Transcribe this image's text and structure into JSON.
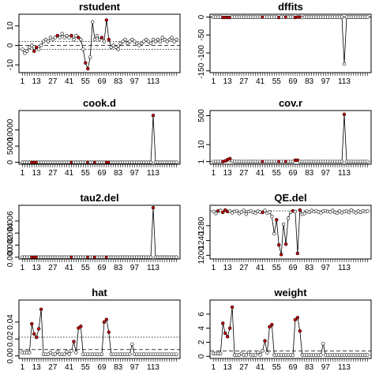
{
  "chart_data": [
    {
      "type": "line",
      "title": "rstudent",
      "xlabel": "",
      "ylabel": "",
      "xticks": [
        "1",
        "13",
        "27",
        "41",
        "55",
        "69",
        "83",
        "97",
        "113"
      ],
      "yticks": [
        -10,
        0,
        10
      ],
      "ylim": [
        -14,
        16
      ],
      "hlines": [
        {
          "y": 2,
          "style": "dotted"
        },
        {
          "y": 0,
          "style": "dashed"
        },
        {
          "y": -2,
          "style": "dotted"
        }
      ],
      "x": [
        1,
        3,
        5,
        7,
        9,
        11,
        13,
        15,
        17,
        19,
        21,
        23,
        25,
        27,
        29,
        31,
        33,
        35,
        37,
        39,
        41,
        43,
        45,
        47,
        49,
        51,
        53,
        55,
        57,
        59,
        61,
        63,
        65,
        67,
        69,
        71,
        73,
        75,
        77,
        79,
        81,
        83,
        85,
        87,
        89,
        91,
        93,
        95,
        97,
        99,
        101,
        103,
        105,
        107,
        109,
        111,
        113,
        115,
        117,
        119,
        121,
        123,
        125,
        127,
        129,
        131,
        133
      ],
      "values": [
        -2,
        -4,
        -3,
        -1,
        0,
        -3,
        -1,
        -2,
        0,
        2,
        3,
        2,
        4,
        3,
        4,
        5,
        4,
        6,
        4,
        5,
        4,
        5,
        3,
        5,
        4,
        3,
        -2,
        -9,
        -12,
        -6,
        12,
        3,
        5,
        3,
        4,
        2,
        13,
        3,
        -1,
        0,
        -1,
        -2,
        1,
        2,
        3,
        1,
        2,
        3,
        2,
        1,
        0,
        1,
        2,
        3,
        2,
        1,
        3,
        2,
        3,
        2,
        4,
        3,
        2,
        3,
        4,
        2,
        3
      ],
      "highlighted_x": [
        11,
        13,
        31,
        43,
        49,
        55,
        57,
        69,
        73,
        75
      ]
    },
    {
      "type": "line",
      "title": "dffits",
      "xlabel": "",
      "ylabel": "",
      "xticks": [
        "1",
        "13",
        "27",
        "41",
        "55",
        "69",
        "83",
        "97",
        "113"
      ],
      "yticks": [
        -150,
        -100,
        -50,
        0
      ],
      "ylim": [
        -155,
        8
      ],
      "hlines": [
        {
          "y": 0.6,
          "style": "dotted"
        },
        {
          "y": 0,
          "style": "dashed"
        },
        {
          "y": -0.6,
          "style": "dotted"
        }
      ],
      "x": [
        1,
        3,
        5,
        7,
        9,
        11,
        13,
        15,
        17,
        19,
        21,
        23,
        25,
        27,
        29,
        31,
        33,
        35,
        37,
        39,
        41,
        43,
        45,
        47,
        49,
        51,
        53,
        55,
        57,
        59,
        61,
        63,
        65,
        67,
        69,
        71,
        73,
        75,
        77,
        79,
        81,
        83,
        85,
        87,
        89,
        91,
        93,
        95,
        97,
        99,
        101,
        103,
        105,
        107,
        109,
        111,
        113,
        115,
        117,
        119,
        121,
        123,
        125,
        127,
        129,
        131,
        133
      ],
      "values": [
        0,
        0,
        0,
        0,
        -1,
        -1,
        -1,
        -1,
        0,
        0,
        0,
        0,
        0,
        0,
        0,
        0,
        0,
        0,
        0,
        0,
        0,
        0,
        0,
        0,
        0,
        0,
        0,
        0,
        -1,
        0,
        0,
        0,
        0,
        0,
        0,
        -1,
        0,
        0,
        -1,
        0,
        0,
        0,
        0,
        0,
        0,
        0,
        0,
        0,
        0,
        0,
        0,
        0,
        0,
        0,
        0,
        0,
        -131,
        0,
        0,
        0,
        0,
        0,
        0,
        0,
        0,
        0,
        0
      ],
      "highlighted_x": [
        9,
        11,
        13,
        15,
        43,
        57,
        63,
        71,
        73,
        75
      ]
    },
    {
      "type": "line",
      "title": "cook.d",
      "xlabel": "",
      "ylabel": "",
      "xticks": [
        "1",
        "13",
        "27",
        "41",
        "55",
        "69",
        "83",
        "97",
        "113"
      ],
      "yticks": [
        0,
        5000,
        10000
      ],
      "ylim": [
        -600,
        16000
      ],
      "hlines": [
        {
          "y": 0,
          "style": "dotted"
        }
      ],
      "x": [
        1,
        3,
        5,
        7,
        9,
        11,
        13,
        15,
        17,
        19,
        21,
        23,
        25,
        27,
        29,
        31,
        33,
        35,
        37,
        39,
        41,
        43,
        45,
        47,
        49,
        51,
        53,
        55,
        57,
        59,
        61,
        63,
        65,
        67,
        69,
        71,
        73,
        75,
        77,
        79,
        81,
        83,
        85,
        87,
        89,
        91,
        93,
        95,
        97,
        99,
        101,
        103,
        105,
        107,
        109,
        111,
        113,
        115,
        117,
        119,
        121,
        123,
        125,
        127,
        129,
        131,
        133
      ],
      "values": [
        0,
        0,
        0,
        0,
        0,
        0,
        0,
        0,
        0,
        0,
        0,
        0,
        0,
        0,
        0,
        0,
        0,
        0,
        0,
        0,
        0,
        0,
        0,
        0,
        0,
        0,
        0,
        0,
        0,
        0,
        0,
        0,
        0,
        0,
        0,
        0,
        0,
        0,
        0,
        0,
        0,
        0,
        0,
        0,
        0,
        0,
        0,
        0,
        0,
        0,
        0,
        0,
        0,
        0,
        0,
        0,
        14500,
        0,
        0,
        0,
        0,
        0,
        0,
        0,
        0,
        0,
        0
      ],
      "highlighted_x": [
        9,
        11,
        13,
        43,
        57,
        63,
        73,
        75,
        113
      ]
    },
    {
      "type": "line",
      "title": "cov.r",
      "xlabel": "",
      "ylabel": "",
      "yscale": "log",
      "xticks": [
        "1",
        "13",
        "27",
        "41",
        "55",
        "69",
        "83",
        "97",
        "113"
      ],
      "yticks": [
        1,
        10,
        500
      ],
      "ylim": [
        0.7,
        1000
      ],
      "hlines": [
        {
          "y": 1,
          "style": "dotted"
        }
      ],
      "x": [
        1,
        3,
        5,
        7,
        9,
        11,
        13,
        15,
        17,
        19,
        21,
        23,
        25,
        27,
        29,
        31,
        33,
        35,
        37,
        39,
        41,
        43,
        45,
        47,
        49,
        51,
        53,
        55,
        57,
        59,
        61,
        63,
        65,
        67,
        69,
        71,
        73,
        75,
        77,
        79,
        81,
        83,
        85,
        87,
        89,
        91,
        93,
        95,
        97,
        99,
        101,
        103,
        105,
        107,
        109,
        111,
        113,
        115,
        117,
        119,
        121,
        123,
        125,
        127,
        129,
        131,
        133
      ],
      "values": [
        1,
        1,
        1,
        1,
        1,
        1.1,
        1.3,
        1.5,
        1.1,
        1,
        1,
        1,
        1,
        1,
        1,
        1,
        1,
        1,
        1,
        1,
        1,
        1,
        1,
        1,
        1,
        1,
        1,
        1,
        1,
        1,
        1,
        1,
        1,
        1,
        1,
        1.2,
        1.2,
        1,
        1,
        1,
        1,
        1,
        1,
        1,
        1,
        1,
        1,
        1,
        1,
        1,
        1,
        1,
        1,
        1,
        1,
        1,
        600,
        1,
        1,
        1,
        1,
        1,
        1,
        1,
        1,
        1,
        1
      ],
      "highlighted_x": [
        9,
        11,
        13,
        15,
        43,
        57,
        63,
        71,
        73,
        113
      ]
    },
    {
      "type": "line",
      "title": "tau2.del",
      "xlabel": "",
      "ylabel": "",
      "xticks": [
        "1",
        "13",
        "27",
        "41",
        "55",
        "69",
        "83",
        "97",
        "113"
      ],
      "yticks": [
        "0.000",
        "0.002",
        "0.004",
        "0.006"
      ],
      "ylim": [
        -0.0003,
        0.0086
      ],
      "hlines": [],
      "x": [
        1,
        3,
        5,
        7,
        9,
        11,
        13,
        15,
        17,
        19,
        21,
        23,
        25,
        27,
        29,
        31,
        33,
        35,
        37,
        39,
        41,
        43,
        45,
        47,
        49,
        51,
        53,
        55,
        57,
        59,
        61,
        63,
        65,
        67,
        69,
        71,
        73,
        75,
        77,
        79,
        81,
        83,
        85,
        87,
        89,
        91,
        93,
        95,
        97,
        99,
        101,
        103,
        105,
        107,
        109,
        111,
        113,
        115,
        117,
        119,
        121,
        123,
        125,
        127,
        129,
        131,
        133
      ],
      "values": [
        0,
        0,
        0,
        0,
        0,
        0,
        0,
        0,
        0,
        0,
        0,
        0,
        0,
        0,
        0,
        0,
        0,
        0,
        0,
        0,
        0,
        0,
        0,
        0,
        0,
        0,
        0,
        0,
        0,
        0,
        0,
        0,
        0,
        0,
        0,
        0,
        0,
        0,
        0,
        0,
        0,
        0,
        0,
        0,
        0,
        0,
        0,
        0,
        0,
        0,
        0,
        0,
        0,
        0,
        0,
        0,
        0.0082,
        0,
        0,
        0,
        0,
        0,
        0,
        0,
        0,
        0,
        0
      ],
      "highlighted_x": [
        9,
        11,
        13,
        43,
        57,
        63,
        73,
        113
      ]
    },
    {
      "type": "line",
      "title": "QE.del",
      "xlabel": "",
      "ylabel": "",
      "xticks": [
        "1",
        "13",
        "27",
        "41",
        "55",
        "69",
        "83",
        "97",
        "113"
      ],
      "yticks": [
        1200,
        1240,
        1280
      ],
      "ylim": [
        1190,
        1335
      ],
      "hlines": [
        {
          "y": 1320,
          "style": "dotted"
        }
      ],
      "x": [
        1,
        3,
        5,
        7,
        9,
        11,
        13,
        15,
        17,
        19,
        21,
        23,
        25,
        27,
        29,
        31,
        33,
        35,
        37,
        39,
        41,
        43,
        45,
        47,
        49,
        51,
        53,
        55,
        57,
        59,
        61,
        63,
        65,
        67,
        69,
        71,
        73,
        75,
        77,
        79,
        81,
        83,
        85,
        87,
        89,
        91,
        93,
        95,
        97,
        99,
        101,
        103,
        105,
        107,
        109,
        111,
        113,
        115,
        117,
        119,
        121,
        123,
        125,
        127,
        129,
        131,
        133
      ],
      "values": [
        1318,
        1313,
        1320,
        1321,
        1316,
        1322,
        1318,
        1320,
        1315,
        1318,
        1320,
        1313,
        1317,
        1321,
        1311,
        1318,
        1320,
        1316,
        1314,
        1319,
        1317,
        1316,
        1321,
        1314,
        1317,
        1305,
        1258,
        1296,
        1228,
        1202,
        1284,
        1230,
        1300,
        1316,
        1320,
        1318,
        1205,
        1322,
        1311,
        1313,
        1320,
        1316,
        1321,
        1318,
        1320,
        1317,
        1315,
        1319,
        1320,
        1318,
        1317,
        1321,
        1316,
        1314,
        1319,
        1315,
        1318,
        1320,
        1316,
        1322,
        1318,
        1315,
        1319,
        1316,
        1320,
        1318,
        1319
      ],
      "highlighted_x": [
        5,
        9,
        11,
        13,
        43,
        55,
        57,
        59,
        63,
        69,
        73,
        75
      ]
    },
    {
      "type": "line",
      "title": "hat",
      "xlabel": "",
      "ylabel": "",
      "xticks": [
        "1",
        "13",
        "27",
        "41",
        "55",
        "69",
        "83",
        "97",
        "113"
      ],
      "yticks": [
        "0.00",
        "0.02",
        "0.04"
      ],
      "ylim": [
        -0.003,
        0.066
      ],
      "hlines": [
        {
          "y": 0.0222,
          "style": "dotted"
        },
        {
          "y": 0.0075,
          "style": "dashed"
        }
      ],
      "x": [
        1,
        3,
        5,
        7,
        9,
        11,
        13,
        15,
        17,
        19,
        21,
        23,
        25,
        27,
        29,
        31,
        33,
        35,
        37,
        39,
        41,
        43,
        45,
        47,
        49,
        51,
        53,
        55,
        57,
        59,
        61,
        63,
        65,
        67,
        69,
        71,
        73,
        75,
        77,
        79,
        81,
        83,
        85,
        87,
        89,
        91,
        93,
        95,
        97,
        99,
        101,
        103,
        105,
        107,
        109,
        111,
        113,
        115,
        117,
        119,
        121,
        123,
        125,
        127,
        129,
        131,
        133
      ],
      "values": [
        0.004,
        0.004,
        0.004,
        0.004,
        0.038,
        0.026,
        0.022,
        0.032,
        0.055,
        0.002,
        0.002,
        0.002,
        0.004,
        0.002,
        0.002,
        0.005,
        0.002,
        0.002,
        0.002,
        0.005,
        0.002,
        0.006,
        0.017,
        0.004,
        0.033,
        0.035,
        0.002,
        0.002,
        0.002,
        0.002,
        0.002,
        0.002,
        0.002,
        0.002,
        0.002,
        0.04,
        0.043,
        0.028,
        0.002,
        0.002,
        0.002,
        0.002,
        0.002,
        0.002,
        0.002,
        0.002,
        0.002,
        0.014,
        0.002,
        0.002,
        0.002,
        0.002,
        0.002,
        0.002,
        0.002,
        0.002,
        0.002,
        0.002,
        0.002,
        0.002,
        0.002,
        0.002,
        0.002,
        0.002,
        0.002,
        0.002,
        0.002
      ],
      "highlighted_x": [
        9,
        11,
        13,
        15,
        17,
        45,
        49,
        51,
        71,
        73,
        75
      ]
    },
    {
      "type": "line",
      "title": "weight",
      "xlabel": "",
      "ylabel": "",
      "xticks": [
        "1",
        "13",
        "27",
        "41",
        "55",
        "69",
        "83",
        "97",
        "113"
      ],
      "yticks": [
        0,
        2,
        4,
        6
      ],
      "ylim": [
        -0.3,
        8
      ],
      "hlines": [
        {
          "y": 0.75,
          "style": "dashed"
        }
      ],
      "x": [
        1,
        3,
        5,
        7,
        9,
        11,
        13,
        15,
        17,
        19,
        21,
        23,
        25,
        27,
        29,
        31,
        33,
        35,
        37,
        39,
        41,
        43,
        45,
        47,
        49,
        51,
        53,
        55,
        57,
        59,
        61,
        63,
        65,
        67,
        69,
        71,
        73,
        75,
        77,
        79,
        81,
        83,
        85,
        87,
        89,
        91,
        93,
        95,
        97,
        99,
        101,
        103,
        105,
        107,
        109,
        111,
        113,
        115,
        117,
        119,
        121,
        123,
        125,
        127,
        129,
        131,
        133
      ],
      "values": [
        0.4,
        0.4,
        0.4,
        0.4,
        4.7,
        3.3,
        2.8,
        4.0,
        7.0,
        0.2,
        0.2,
        0.2,
        0.4,
        0.2,
        0.2,
        0.6,
        0.2,
        0.2,
        0.2,
        0.6,
        0.2,
        0.8,
        2.2,
        0.5,
        4.2,
        4.5,
        0.2,
        0.2,
        0.2,
        0.2,
        0.2,
        0.2,
        0.2,
        0.2,
        0.2,
        5.2,
        5.5,
        3.6,
        0.2,
        0.2,
        0.2,
        0.2,
        0.2,
        0.2,
        0.2,
        0.2,
        0.2,
        1.8,
        0.2,
        0.2,
        0.2,
        0.2,
        0.2,
        0.2,
        0.2,
        0.2,
        0.2,
        0.2,
        0.2,
        0.2,
        0.2,
        0.2,
        0.2,
        0.2,
        0.2,
        0.2,
        0.2
      ],
      "highlighted_x": [
        9,
        11,
        13,
        15,
        17,
        45,
        49,
        51,
        71,
        73,
        75
      ]
    }
  ]
}
